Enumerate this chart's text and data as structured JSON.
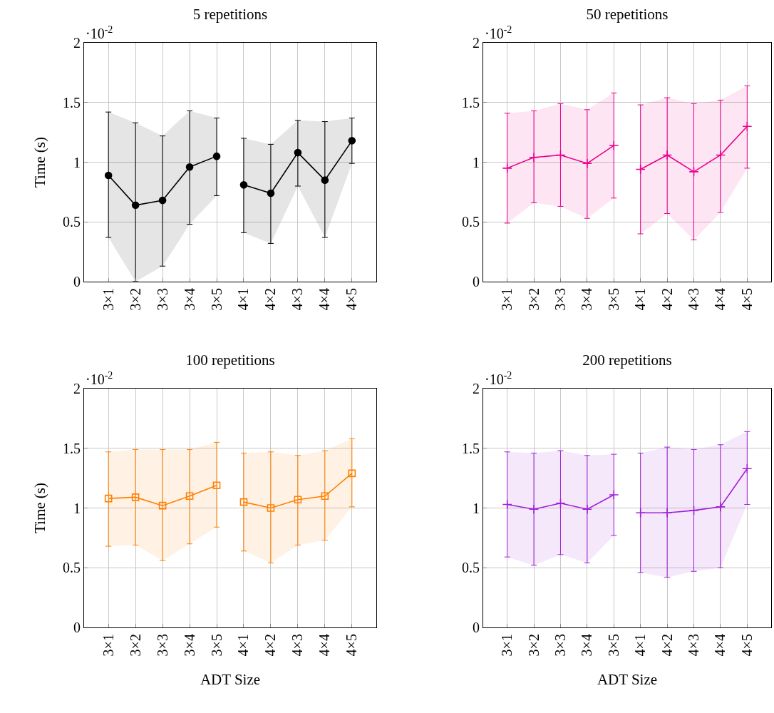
{
  "chart_data": [
    {
      "type": "line",
      "title": "5 repetitions",
      "ylabel": "Time (s)",
      "categories": [
        "3×1",
        "3×2",
        "3×3",
        "3×4",
        "3×5",
        "4×1",
        "4×2",
        "4×3",
        "4×4",
        "4×5"
      ],
      "ylim": [
        0,
        2
      ],
      "yticks": [
        0,
        0.5,
        1,
        1.5,
        2
      ],
      "grid": true,
      "marker": "circle",
      "annotations": [
        "·10$^{-2}$"
      ],
      "series": [
        {
          "color": "#000000",
          "values": [
            0.89,
            0.64,
            0.68,
            0.96,
            1.05,
            null,
            null,
            null,
            null,
            null
          ],
          "errors": [
            [
              0.37,
              1.42
            ],
            [
              0,
              1.33
            ],
            [
              0.13,
              1.22
            ],
            [
              0.48,
              1.43
            ],
            [
              0.72,
              1.37
            ],
            null,
            null,
            null,
            null,
            null
          ],
          "lower": [
            0.37,
            0,
            0.13,
            0.48,
            0.72,
            null,
            null,
            null,
            null,
            null
          ],
          "upper": [
            1.42,
            1.33,
            1.22,
            1.43,
            1.37,
            null,
            null,
            null,
            null,
            null
          ]
        },
        {
          "color": "#000000",
          "values": [
            null,
            null,
            null,
            null,
            null,
            0.81,
            0.74,
            1.08,
            0.85,
            1.18
          ],
          "errors": [
            null,
            null,
            null,
            null,
            null,
            [
              0.41,
              1.2
            ],
            [
              0.32,
              1.15
            ],
            [
              0.8,
              1.35
            ],
            [
              0.37,
              1.34
            ],
            [
              0.99,
              1.37
            ]
          ],
          "lower": [
            null,
            null,
            null,
            null,
            null,
            0.41,
            0.32,
            0.8,
            0.37,
            0.99
          ],
          "upper": [
            null,
            null,
            null,
            null,
            null,
            1.2,
            1.15,
            1.35,
            1.34,
            1.37
          ]
        }
      ]
    },
    {
      "type": "line",
      "title": "50 repetitions",
      "categories": [
        "3×1",
        "3×2",
        "3×3",
        "3×4",
        "3×5",
        "4×1",
        "4×2",
        "4×3",
        "4×4",
        "4×5"
      ],
      "ylim": [
        0,
        2
      ],
      "yticks": [
        0,
        0.5,
        1,
        1.5,
        2
      ],
      "grid": true,
      "marker": "cross",
      "annotations": [
        "·10$^{-2}$"
      ],
      "series": [
        {
          "color": "#ec008c",
          "values": [
            0.95,
            1.04,
            1.06,
            0.99,
            1.14,
            null,
            null,
            null,
            null,
            null
          ],
          "errors": [
            [
              0.49,
              1.41
            ],
            [
              0.66,
              1.43
            ],
            [
              0.63,
              1.49
            ],
            [
              0.53,
              1.44
            ],
            [
              0.7,
              1.58
            ],
            null,
            null,
            null,
            null,
            null
          ],
          "lower": [
            0.49,
            0.66,
            0.63,
            0.53,
            0.7,
            null,
            null,
            null,
            null,
            null
          ],
          "upper": [
            1.41,
            1.43,
            1.49,
            1.44,
            1.58,
            null,
            null,
            null,
            null,
            null
          ]
        },
        {
          "color": "#ec008c",
          "values": [
            null,
            null,
            null,
            null,
            null,
            0.94,
            1.06,
            0.92,
            1.06,
            1.3
          ],
          "errors": [
            null,
            null,
            null,
            null,
            null,
            [
              0.4,
              1.48
            ],
            [
              0.57,
              1.54
            ],
            [
              0.35,
              1.49
            ],
            [
              0.58,
              1.52
            ],
            [
              0.95,
              1.64
            ]
          ],
          "lower": [
            null,
            null,
            null,
            null,
            null,
            0.4,
            0.57,
            0.35,
            0.58,
            0.95
          ],
          "upper": [
            null,
            null,
            null,
            null,
            null,
            1.48,
            1.54,
            1.49,
            1.52,
            1.64
          ]
        }
      ]
    },
    {
      "type": "line",
      "title": "100 repetitions",
      "ylabel": "Time (s)",
      "xlabel": "ADT Size",
      "categories": [
        "3×1",
        "3×2",
        "3×3",
        "3×4",
        "3×5",
        "4×1",
        "4×2",
        "4×3",
        "4×4",
        "4×5"
      ],
      "ylim": [
        0,
        2
      ],
      "yticks": [
        0,
        0.5,
        1,
        1.5,
        2
      ],
      "grid": true,
      "marker": "square",
      "annotations": [
        "·10$^{-2}$"
      ],
      "series": [
        {
          "color": "#ff8000",
          "values": [
            1.08,
            1.09,
            1.02,
            1.1,
            1.19,
            null,
            null,
            null,
            null,
            null
          ],
          "errors": [
            [
              0.68,
              1.47
            ],
            [
              0.69,
              1.49
            ],
            [
              0.56,
              1.49
            ],
            [
              0.7,
              1.49
            ],
            [
              0.84,
              1.55
            ],
            null,
            null,
            null,
            null,
            null
          ],
          "lower": [
            0.68,
            0.69,
            0.56,
            0.7,
            0.84,
            null,
            null,
            null,
            null,
            null
          ],
          "upper": [
            1.47,
            1.49,
            1.49,
            1.49,
            1.55,
            null,
            null,
            null,
            null,
            null
          ]
        },
        {
          "color": "#ff8000",
          "values": [
            null,
            null,
            null,
            null,
            null,
            1.05,
            1.0,
            1.07,
            1.1,
            1.29
          ],
          "errors": [
            null,
            null,
            null,
            null,
            null,
            [
              0.64,
              1.46
            ],
            [
              0.54,
              1.47
            ],
            [
              0.69,
              1.44
            ],
            [
              0.73,
              1.48
            ],
            [
              1.01,
              1.58
            ]
          ],
          "lower": [
            null,
            null,
            null,
            null,
            null,
            0.64,
            0.54,
            0.69,
            0.73,
            1.01
          ],
          "upper": [
            null,
            null,
            null,
            null,
            null,
            1.46,
            1.47,
            1.44,
            1.48,
            1.58
          ]
        }
      ]
    },
    {
      "type": "line",
      "title": "200 repetitions",
      "xlabel": "ADT Size",
      "categories": [
        "3×1",
        "3×2",
        "3×3",
        "3×4",
        "3×5",
        "4×1",
        "4×2",
        "4×3",
        "4×4",
        "4×5"
      ],
      "ylim": [
        0,
        2
      ],
      "yticks": [
        0,
        0.5,
        1,
        1.5,
        2
      ],
      "grid": true,
      "marker": "cross",
      "annotations": [
        "·10$^{-2}$"
      ],
      "series": [
        {
          "color": "#a020d8",
          "values": [
            1.03,
            0.99,
            1.04,
            0.99,
            1.11,
            null,
            null,
            null,
            null,
            null
          ],
          "errors": [
            [
              0.59,
              1.47
            ],
            [
              0.52,
              1.46
            ],
            [
              0.61,
              1.48
            ],
            [
              0.54,
              1.44
            ],
            [
              0.77,
              1.45
            ],
            null,
            null,
            null,
            null,
            null
          ],
          "lower": [
            0.59,
            0.52,
            0.61,
            0.54,
            0.77,
            null,
            null,
            null,
            null,
            null
          ],
          "upper": [
            1.47,
            1.46,
            1.48,
            1.44,
            1.45,
            null,
            null,
            null,
            null,
            null
          ]
        },
        {
          "color": "#a020d8",
          "values": [
            null,
            null,
            null,
            null,
            null,
            0.96,
            0.96,
            0.98,
            1.01,
            1.33
          ],
          "errors": [
            null,
            null,
            null,
            null,
            null,
            [
              0.46,
              1.46
            ],
            [
              0.42,
              1.51
            ],
            [
              0.47,
              1.49
            ],
            [
              0.5,
              1.53
            ],
            [
              1.03,
              1.64
            ]
          ],
          "lower": [
            null,
            null,
            null,
            null,
            null,
            0.46,
            0.42,
            0.47,
            0.5,
            1.03
          ],
          "upper": [
            null,
            null,
            null,
            null,
            null,
            1.46,
            1.51,
            1.49,
            1.53,
            1.64
          ]
        }
      ]
    }
  ]
}
